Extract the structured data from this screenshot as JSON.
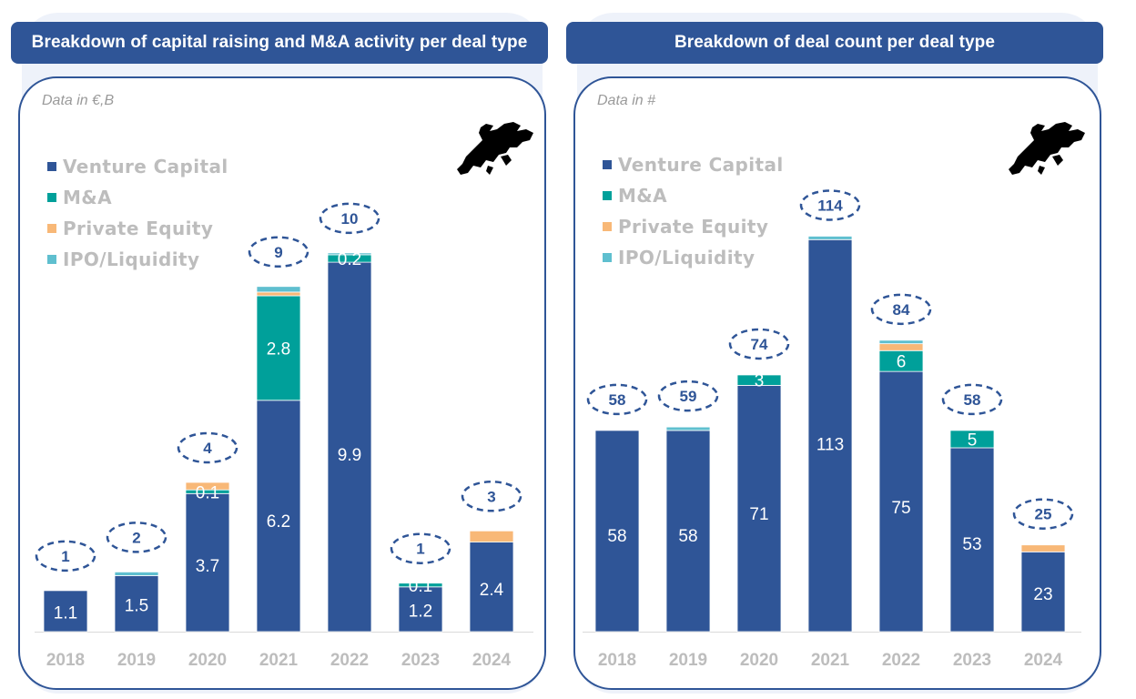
{
  "colors": {
    "venture_capital": "#2f5597",
    "ma": "#00a09a",
    "private_equity": "#f8b877",
    "ipo_liquidity": "#5fbfcf",
    "total_label": "#2f5597",
    "axis_label": "#bdbdbd"
  },
  "panels": [
    {
      "title": "Breakdown of capital raising and M&A activity per deal type",
      "unit_note": "Data in €,B",
      "legend": [
        "Venture Capital",
        "M&A",
        "Private Equity",
        "IPO/Liquidity"
      ]
    },
    {
      "title": "Breakdown of deal count per deal type",
      "unit_note": "Data in #",
      "legend": [
        "Venture Capital",
        "M&A",
        "Private Equity",
        "IPO/Liquidity"
      ]
    }
  ],
  "chart_data": [
    {
      "type": "bar",
      "stacked": true,
      "title": "Breakdown of capital raising and M&A activity per deal type",
      "categories": [
        "2018",
        "2019",
        "2020",
        "2021",
        "2022",
        "2023",
        "2024"
      ],
      "ylim": [
        0,
        12
      ],
      "series": [
        {
          "name": "Venture Capital",
          "values": [
            1.1,
            1.5,
            3.7,
            6.2,
            9.9,
            1.2,
            2.4
          ],
          "labels": [
            "1.1",
            "1.5",
            "3.7",
            "6.2",
            "9.9",
            "1.2",
            "2.4"
          ]
        },
        {
          "name": "M&A",
          "values": [
            0,
            0,
            0.1,
            2.8,
            0.2,
            0.1,
            0
          ],
          "labels": [
            "",
            "",
            "0.1",
            "2.8",
            "0.2",
            "0.1",
            ""
          ]
        },
        {
          "name": "Private Equity",
          "values": [
            0,
            0,
            0.2,
            0.1,
            0,
            0,
            0.3
          ],
          "labels": [
            "",
            "",
            "",
            "",
            "",
            "",
            ""
          ]
        },
        {
          "name": "IPO/Liquidity",
          "values": [
            0,
            0.1,
            0,
            0.15,
            0.05,
            0,
            0
          ],
          "labels": [
            "",
            "",
            "",
            "",
            "",
            "",
            ""
          ]
        }
      ],
      "totals": [
        "1",
        "2",
        "4",
        "9",
        "10",
        "1",
        "3"
      ],
      "legend_position": "top-left"
    },
    {
      "type": "bar",
      "stacked": true,
      "title": "Breakdown of deal count per deal type",
      "categories": [
        "2018",
        "2019",
        "2020",
        "2021",
        "2022",
        "2023",
        "2024"
      ],
      "ylim": [
        0,
        138
      ],
      "series": [
        {
          "name": "Venture Capital",
          "values": [
            58,
            58,
            71,
            113,
            75,
            53,
            23
          ],
          "labels": [
            "58",
            "58",
            "71",
            "113",
            "75",
            "53",
            "23"
          ]
        },
        {
          "name": "M&A",
          "values": [
            0,
            0,
            3,
            0,
            6,
            5,
            0
          ],
          "labels": [
            "",
            "",
            "3",
            "",
            "6",
            "5",
            ""
          ]
        },
        {
          "name": "Private Equity",
          "values": [
            0,
            0,
            0,
            0,
            2,
            0,
            2
          ],
          "labels": [
            "",
            "",
            "",
            "",
            "",
            "",
            ""
          ]
        },
        {
          "name": "IPO/Liquidity",
          "values": [
            0,
            1,
            0,
            1,
            1,
            0,
            0
          ],
          "labels": [
            "",
            "",
            "",
            "",
            "",
            "",
            ""
          ]
        }
      ],
      "totals": [
        "58",
        "59",
        "74",
        "114",
        "84",
        "58",
        "25"
      ],
      "legend_position": "top-left"
    }
  ]
}
